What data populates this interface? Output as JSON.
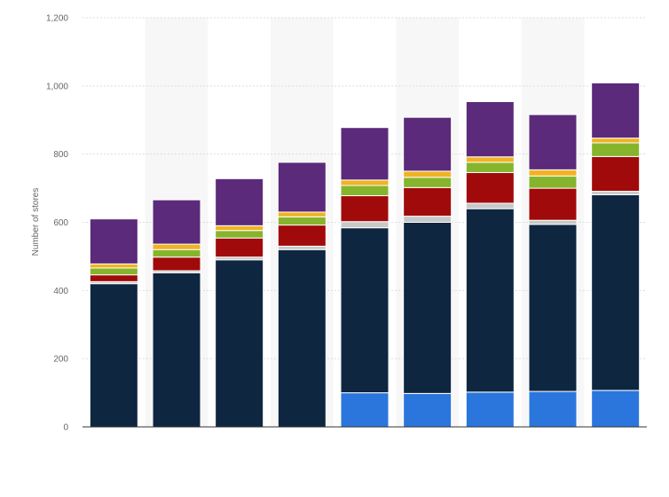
{
  "chart_data": {
    "type": "bar",
    "stacked": true,
    "title": "",
    "xlabel": "",
    "ylabel": "Number of stores",
    "ylim": [
      0,
      1200
    ],
    "yticks": [
      0,
      200,
      400,
      600,
      800,
      1000,
      1200
    ],
    "ytick_labels": [
      "0",
      "200",
      "400",
      "600",
      "800",
      "1,000",
      "1,200"
    ],
    "grid": true,
    "legend": "none",
    "category_count": 9,
    "series": [
      {
        "color": "#2a76dd",
        "values": [
          0,
          0,
          0,
          0,
          100,
          98,
          102,
          104,
          107
        ]
      },
      {
        "color": "#0e2640",
        "values": [
          420,
          452,
          490,
          520,
          484,
          502,
          538,
          490,
          574
        ]
      },
      {
        "color": "#c8c8c8",
        "values": [
          6,
          6,
          8,
          10,
          18,
          18,
          16,
          12,
          10
        ]
      },
      {
        "color": "#a10a0a",
        "values": [
          20,
          40,
          56,
          62,
          76,
          84,
          90,
          94,
          102
        ]
      },
      {
        "color": "#86b52d",
        "values": [
          20,
          22,
          22,
          24,
          30,
          30,
          30,
          36,
          40
        ]
      },
      {
        "color": "#f0b323",
        "values": [
          12,
          16,
          14,
          14,
          16,
          18,
          16,
          18,
          14
        ]
      },
      {
        "color": "#5b2a7a",
        "values": [
          132,
          130,
          138,
          146,
          154,
          158,
          162,
          162,
          162
        ]
      }
    ]
  }
}
